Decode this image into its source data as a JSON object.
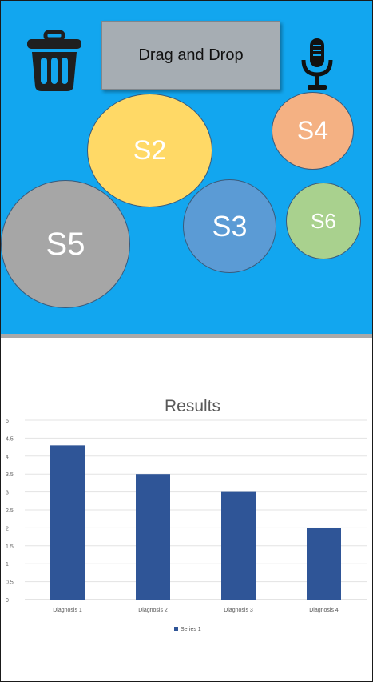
{
  "canvas": {
    "drag_label": "Drag and Drop",
    "bubbles": [
      {
        "id": "s2",
        "label": "S2",
        "color": "#ffd966"
      },
      {
        "id": "s4",
        "label": "S4",
        "color": "#f4b183"
      },
      {
        "id": "s5",
        "label": "S5",
        "color": "#a6a6a6"
      },
      {
        "id": "s3",
        "label": "S3",
        "color": "#5b9bd5"
      },
      {
        "id": "s6",
        "label": "S6",
        "color": "#a9d18e"
      }
    ],
    "background_color": "#12a6ef",
    "icons": [
      "trash-icon",
      "microphone-icon"
    ]
  },
  "chart_data": {
    "type": "bar",
    "title": "Results",
    "categories": [
      "Diagnosis 1",
      "Diagnosis 2",
      "Diagnosis 3",
      "Diagnosis 4"
    ],
    "series": [
      {
        "name": "Series 1",
        "values": [
          4.3,
          3.5,
          3.0,
          2.0
        ],
        "color": "#2f5597"
      }
    ],
    "yticks": [
      "0",
      "0.5",
      "1",
      "1.5",
      "2",
      "2.5",
      "3",
      "3.5",
      "4",
      "4.5",
      "5"
    ],
    "ylim": [
      0,
      5
    ],
    "grid": true,
    "legend_position": "bottom"
  }
}
